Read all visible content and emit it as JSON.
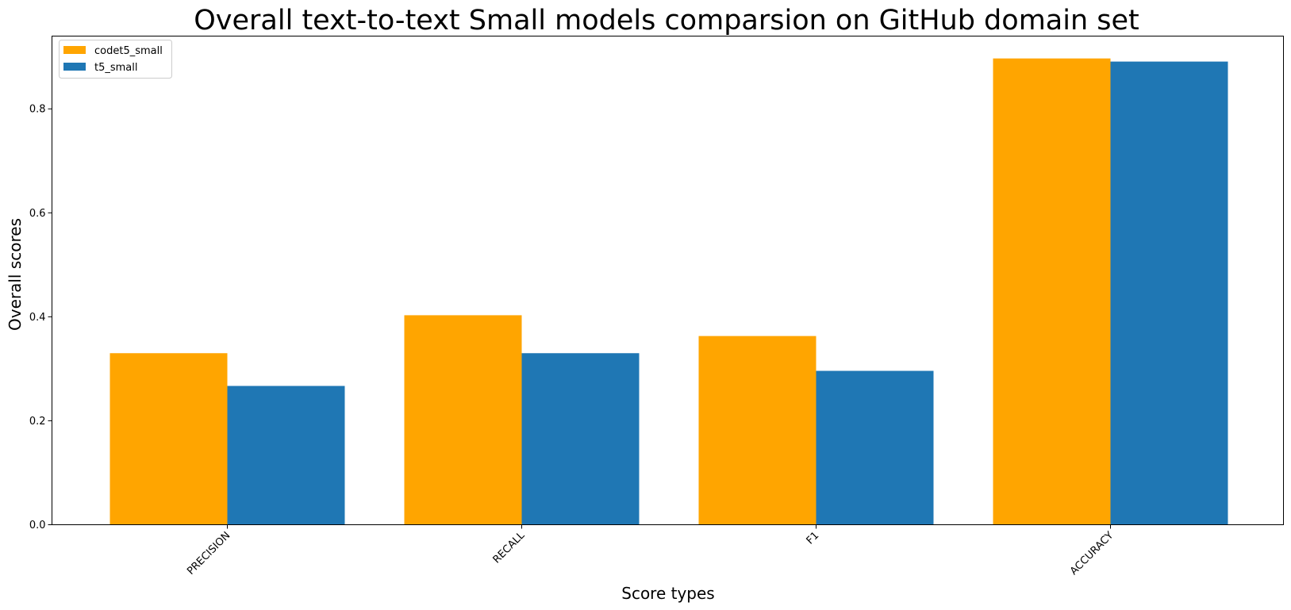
{
  "chart_data": {
    "type": "bar",
    "title": "Overall text-to-text Small models comparsion on GitHub domain set",
    "xlabel": "Score types",
    "ylabel": "Overall scores",
    "categories": [
      "PRECISION",
      "RECALL",
      "F1",
      "ACCURACY"
    ],
    "series": [
      {
        "name": "codet5_small",
        "color": "#ffa500",
        "values": [
          0.33,
          0.403,
          0.363,
          0.897
        ]
      },
      {
        "name": "t5_small",
        "color": "#1f77b4",
        "values": [
          0.267,
          0.33,
          0.296,
          0.891
        ]
      }
    ],
    "ylim": [
      0,
      0.94
    ],
    "yticks": [
      0.0,
      0.2,
      0.4,
      0.6,
      0.8
    ],
    "ytick_labels": [
      "0.0",
      "0.2",
      "0.4",
      "0.6",
      "0.8"
    ],
    "grid": false,
    "legend_position": "top-left"
  }
}
